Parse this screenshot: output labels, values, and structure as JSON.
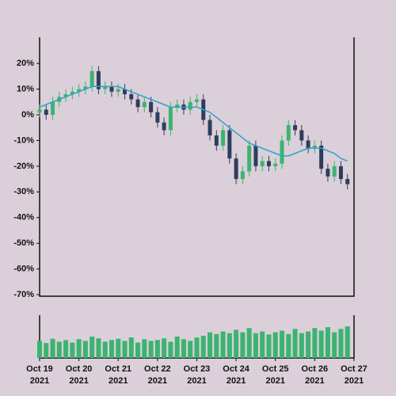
{
  "chart_data": {
    "type": "candlestick",
    "x": [
      "2021-10-19T00:00",
      "2021-10-19T04:00",
      "2021-10-19T08:00",
      "2021-10-19T12:00",
      "2021-10-19T16:00",
      "2021-10-19T20:00",
      "2021-10-20T00:00",
      "2021-10-20T04:00",
      "2021-10-20T08:00",
      "2021-10-20T12:00",
      "2021-10-20T16:00",
      "2021-10-20T20:00",
      "2021-10-21T00:00",
      "2021-10-21T04:00",
      "2021-10-21T08:00",
      "2021-10-21T12:00",
      "2021-10-21T16:00",
      "2021-10-21T20:00",
      "2021-10-22T00:00",
      "2021-10-22T04:00",
      "2021-10-22T08:00",
      "2021-10-22T12:00",
      "2021-10-22T16:00",
      "2021-10-22T20:00",
      "2021-10-23T00:00",
      "2021-10-23T04:00",
      "2021-10-23T08:00",
      "2021-10-23T12:00",
      "2021-10-23T16:00",
      "2021-10-23T20:00",
      "2021-10-24T00:00",
      "2021-10-24T04:00",
      "2021-10-24T08:00",
      "2021-10-24T12:00",
      "2021-10-24T16:00",
      "2021-10-24T20:00",
      "2021-10-25T00:00",
      "2021-10-25T04:00",
      "2021-10-25T08:00",
      "2021-10-25T12:00",
      "2021-10-25T16:00",
      "2021-10-25T20:00",
      "2021-10-26T00:00",
      "2021-10-26T04:00",
      "2021-10-26T08:00",
      "2021-10-26T12:00",
      "2021-10-26T16:00",
      "2021-10-26T20:00"
    ],
    "open": [
      1,
      2,
      0,
      5,
      7,
      8,
      9,
      10,
      11,
      17,
      10,
      11,
      9,
      10,
      8,
      6,
      3,
      5,
      1,
      -3,
      -6,
      3,
      4,
      2,
      5,
      6,
      -2,
      -8,
      -12,
      -6,
      -17,
      -25,
      -22,
      -12,
      -20,
      -18,
      -20,
      -19,
      -10,
      -4,
      -6,
      -10,
      -13,
      -12,
      -21,
      -24,
      -20,
      -25
    ],
    "high": [
      4,
      4,
      7,
      9,
      10,
      11,
      12,
      13,
      19,
      19,
      13,
      13,
      12,
      12,
      10,
      8,
      7,
      7,
      3,
      -1,
      5,
      6,
      6,
      7,
      8,
      8,
      0,
      -6,
      -4,
      -4,
      -15,
      -20,
      -10,
      -10,
      -16,
      -16,
      -17,
      -8,
      -2,
      -2,
      -4,
      -8,
      -10,
      -10,
      -19,
      -18,
      -18,
      -23
    ],
    "low": [
      -1,
      -2,
      -2,
      3,
      5,
      6,
      7,
      8,
      9,
      8,
      8,
      7,
      7,
      6,
      4,
      1,
      1,
      -1,
      -5,
      -8,
      -8,
      1,
      0,
      0,
      3,
      -4,
      -10,
      -14,
      -14,
      -19,
      -27,
      -27,
      -24,
      -22,
      -22,
      -22,
      -22,
      -21,
      -12,
      -8,
      -12,
      -15,
      -15,
      -23,
      -26,
      -26,
      -27,
      -29
    ],
    "close": [
      2,
      0,
      5,
      7,
      8,
      9,
      10,
      11,
      17,
      10,
      11,
      9,
      10,
      8,
      6,
      3,
      5,
      1,
      -3,
      -6,
      3,
      4,
      2,
      5,
      6,
      -2,
      -8,
      -12,
      -6,
      -17,
      -25,
      -22,
      -12,
      -20,
      -18,
      -20,
      -19,
      -10,
      -4,
      -6,
      -10,
      -13,
      -12,
      -21,
      -24,
      -20,
      -25,
      -27
    ],
    "up_color": "#3cb371",
    "down_color": "#2f3d5c",
    "moving_average": {
      "color": "#2aa3cc",
      "values": [
        3,
        4,
        5,
        6,
        7,
        8,
        9,
        10,
        11,
        11,
        11,
        11,
        11,
        10,
        9,
        8,
        7,
        6,
        5,
        4,
        3,
        3,
        3,
        3,
        3,
        2,
        1,
        -1,
        -3,
        -5,
        -7,
        -9,
        -11,
        -12,
        -13,
        -14,
        -15,
        -16,
        -16,
        -15,
        -14,
        -13,
        -13,
        -13,
        -14,
        -15,
        -17,
        -18
      ]
    },
    "volume": {
      "color": "#3cb371",
      "ylim": [
        0,
        100
      ],
      "values": [
        40,
        35,
        45,
        38,
        42,
        36,
        44,
        40,
        50,
        46,
        38,
        42,
        45,
        40,
        48,
        36,
        44,
        40,
        42,
        46,
        38,
        50,
        44,
        40,
        48,
        52,
        60,
        56,
        62,
        58,
        66,
        60,
        70,
        58,
        62,
        55,
        60,
        64,
        56,
        68,
        58,
        62,
        70,
        64,
        72,
        60,
        68,
        74
      ]
    },
    "xlim": [
      "2021-10-19T00:00",
      "2021-10-27T00:00"
    ],
    "xticks": [
      {
        "value": "2021-10-19",
        "label": "Oct 19",
        "year": "2021"
      },
      {
        "value": "2021-10-20",
        "label": "Oct 20",
        "year": "2021"
      },
      {
        "value": "2021-10-21",
        "label": "Oct 21",
        "year": "2021"
      },
      {
        "value": "2021-10-22",
        "label": "Oct 22",
        "year": "2021"
      },
      {
        "value": "2021-10-23",
        "label": "Oct 23",
        "year": "2021"
      },
      {
        "value": "2021-10-24",
        "label": "Oct 24",
        "year": "2021"
      },
      {
        "value": "2021-10-25",
        "label": "Oct 25",
        "year": "2021"
      },
      {
        "value": "2021-10-26",
        "label": "Oct 26",
        "year": "2021"
      },
      {
        "value": "2021-10-27",
        "label": "Oct 27",
        "year": "2021"
      }
    ],
    "ylim": [
      -70.6,
      30.2
    ],
    "yticks": [
      {
        "value": 20,
        "label": "20%"
      },
      {
        "value": 10,
        "label": "10%"
      },
      {
        "value": 0,
        "label": "0%"
      },
      {
        "value": -10,
        "label": "-10%"
      },
      {
        "value": -20,
        "label": "-20%"
      },
      {
        "value": -30,
        "label": "-30%"
      },
      {
        "value": -40,
        "label": "-40%"
      },
      {
        "value": -50,
        "label": "-50%"
      },
      {
        "value": -60,
        "label": "-60%"
      },
      {
        "value": -70,
        "label": "-70%"
      }
    ]
  }
}
